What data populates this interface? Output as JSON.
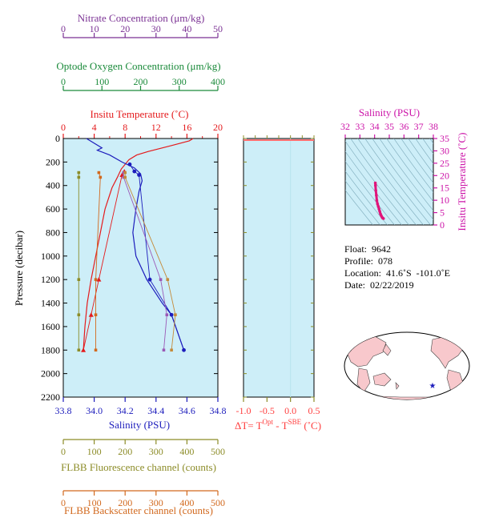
{
  "chart_data": {
    "type": "line",
    "profile_axes": {
      "pressure": {
        "label": "Pressure (decibar)",
        "range": [
          0,
          2200
        ],
        "ticks": [
          0,
          200,
          400,
          600,
          800,
          1000,
          1200,
          1400,
          1600,
          1800,
          2000,
          2200
        ]
      },
      "temperature": {
        "label": "Insitu Temperature (˚C)",
        "range": [
          0,
          20
        ],
        "ticks": [
          0,
          4,
          8,
          12,
          16,
          20
        ],
        "color": "#e41a1c"
      },
      "salinity": {
        "label": "Salinity (PSU)",
        "range": [
          33.8,
          34.8
        ],
        "ticks": [
          "33.8",
          "34.0",
          "34.2",
          "34.4",
          "34.6",
          "34.8"
        ],
        "color": "#1c1cbc"
      },
      "nitrate": {
        "label": "Nitrate Concentration (μm/kg)",
        "range": [
          0,
          50
        ],
        "ticks": [
          0,
          10,
          20,
          30,
          40,
          50
        ],
        "color": "#7b3294"
      },
      "oxygen": {
        "label": "Optode Oxygen Concentration (μm/kg)",
        "range": [
          0,
          400
        ],
        "ticks": [
          0,
          100,
          200,
          300,
          400
        ],
        "color": "#1a8a3a"
      },
      "fluorescence": {
        "label": "FLBB Fluorescence channel (counts)",
        "range": [
          0,
          500
        ],
        "ticks": [
          0,
          100,
          200,
          300,
          400,
          500
        ],
        "color": "#8c8c28"
      },
      "backscatter": {
        "label": "FLBB Backscatter channel (counts)",
        "range": [
          0,
          500
        ],
        "ticks": [
          0,
          100,
          200,
          300,
          400,
          500
        ],
        "color": "#d2691e"
      }
    },
    "series": [
      {
        "name": "temperature",
        "points": [
          [
            16.8,
            0
          ],
          [
            16.3,
            20
          ],
          [
            14,
            60
          ],
          [
            11,
            110
          ],
          [
            9.5,
            140
          ],
          [
            8.5,
            180
          ],
          [
            7.5,
            260
          ],
          [
            7,
            330
          ],
          [
            6.3,
            420
          ],
          [
            5.4,
            600
          ],
          [
            4.8,
            800
          ],
          [
            4.2,
            1000
          ],
          [
            3.6,
            1200
          ],
          [
            3.1,
            1400
          ],
          [
            2.8,
            1600
          ],
          [
            2.6,
            1800
          ]
        ]
      },
      {
        "name": "temperature_bottles",
        "points": [
          [
            7.9,
            280
          ],
          [
            7.6,
            310
          ],
          [
            4.6,
            1200
          ],
          [
            3.6,
            1500
          ],
          [
            2.6,
            1800
          ]
        ]
      },
      {
        "name": "salinity",
        "points": [
          [
            33.95,
            0
          ],
          [
            34.05,
            80
          ],
          [
            34.02,
            100
          ],
          [
            34.1,
            140
          ],
          [
            34.18,
            200
          ],
          [
            34.26,
            250
          ],
          [
            34.3,
            300
          ],
          [
            34.31,
            360
          ],
          [
            34.29,
            450
          ],
          [
            34.27,
            600
          ],
          [
            34.25,
            800
          ],
          [
            34.27,
            1000
          ],
          [
            34.34,
            1200
          ],
          [
            34.44,
            1400
          ],
          [
            34.5,
            1500
          ],
          [
            34.54,
            1650
          ],
          [
            34.58,
            1800
          ]
        ]
      },
      {
        "name": "salinity_bottles",
        "points": [
          [
            34.23,
            220
          ],
          [
            34.26,
            280
          ],
          [
            34.29,
            310
          ],
          [
            34.36,
            1200
          ],
          [
            34.5,
            1500
          ],
          [
            34.58,
            1800
          ]
        ]
      },
      {
        "name": "nitrate",
        "points": [
          [
            19.5,
            290
          ],
          [
            19.5,
            330
          ],
          [
            31.5,
            1200
          ],
          [
            33.5,
            1500
          ],
          [
            32.5,
            1800
          ]
        ]
      },
      {
        "name": "oxygen",
        "points": [
          [
            160,
            290
          ],
          [
            160,
            330
          ],
          [
            270,
            1200
          ],
          [
            290,
            1500
          ],
          [
            280,
            1800
          ]
        ]
      },
      {
        "name": "fluorescence",
        "points": [
          [
            50,
            290
          ],
          [
            50,
            330
          ],
          [
            50,
            1200
          ],
          [
            50,
            1500
          ],
          [
            50,
            1800
          ]
        ]
      },
      {
        "name": "backscatter",
        "points": [
          [
            115,
            290
          ],
          [
            120,
            330
          ],
          [
            105,
            1200
          ],
          [
            105,
            1500
          ],
          [
            105,
            1800
          ]
        ]
      }
    ],
    "delta_t": {
      "label_prefix": "ΔT= T",
      "sup1": "Opt",
      "mid": " - T",
      "sup2": "SBE",
      "suffix": " (˚C)",
      "range": [
        -1.0,
        0.5
      ],
      "ticks": [
        "-1.0",
        "-0.5",
        "0.0",
        "0.5"
      ],
      "points": [
        [
          0,
          0
        ],
        [
          0,
          2200
        ]
      ]
    },
    "ts_diagram": {
      "title": "Salinity (PSU)",
      "xlabel_ticks": [
        "32",
        "33",
        "34",
        "35",
        "36",
        "37",
        "38"
      ],
      "ylabel": "Insitu Temperature (˚C)",
      "yticks": [
        "0",
        "5",
        "10",
        "15",
        "20",
        "25",
        "30",
        "35"
      ],
      "xrange": [
        32,
        38
      ],
      "yrange": [
        0,
        35
      ],
      "points": [
        [
          34.05,
          17
        ],
        [
          34.06,
          16
        ],
        [
          34.08,
          14
        ],
        [
          34.12,
          12
        ],
        [
          34.15,
          10
        ],
        [
          34.2,
          8.5
        ],
        [
          34.25,
          7.5
        ],
        [
          34.3,
          6.5
        ],
        [
          34.35,
          5.5
        ],
        [
          34.4,
          4.5
        ],
        [
          34.45,
          3.8
        ],
        [
          34.5,
          3.2
        ],
        [
          34.55,
          2.8
        ],
        [
          34.6,
          2.6
        ]
      ]
    }
  },
  "info": {
    "float": "Float:  9642",
    "profile": "Profile:  078",
    "location": "Location:  41.6˚S  -101.0˚E",
    "date": "Date:  02/22/2019"
  },
  "colors": {
    "panel_bg": "#cdeef8",
    "dt_line": "#ff6f6f",
    "ts_points": "#e0147a",
    "land": "#f8c8cc"
  }
}
